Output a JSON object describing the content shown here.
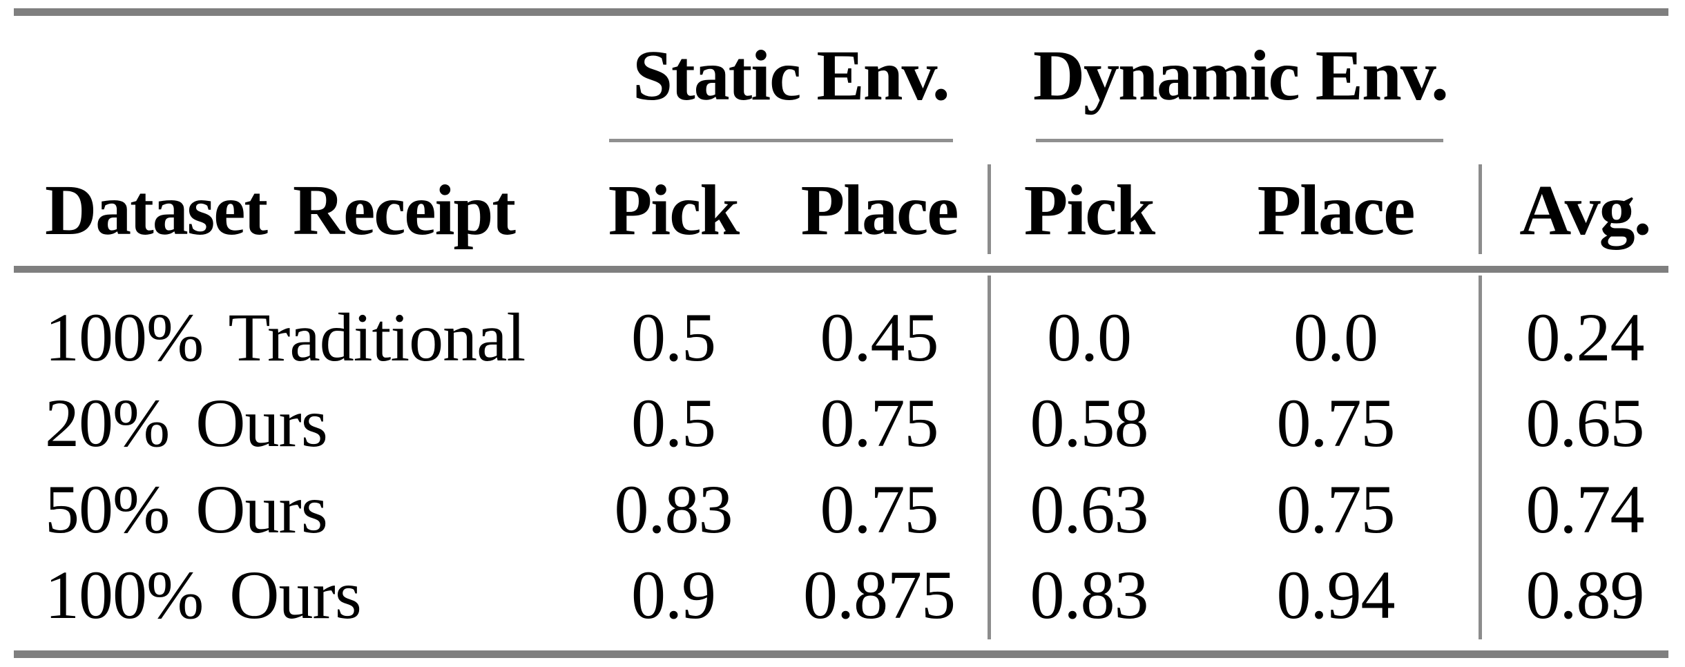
{
  "table": {
    "group_headers": [
      {
        "label": "Static Env."
      },
      {
        "label": "Dynamic Env."
      }
    ],
    "columns": [
      {
        "label": "Dataset Receipt"
      },
      {
        "label": "Pick"
      },
      {
        "label": "Place"
      },
      {
        "label": "Pick"
      },
      {
        "label": "Place"
      },
      {
        "label": "Avg."
      }
    ],
    "rows": [
      {
        "cells": [
          "100% Traditional",
          "0.5",
          "0.45",
          "0.0",
          "0.0",
          "0.24"
        ]
      },
      {
        "cells": [
          "20% Ours",
          "0.5",
          "0.75",
          "0.58",
          "0.75",
          "0.65"
        ]
      },
      {
        "cells": [
          "50% Ours",
          "0.83",
          "0.75",
          "0.63",
          "0.75",
          "0.74"
        ]
      },
      {
        "cells": [
          "100% Ours",
          "0.9",
          "0.875",
          "0.83",
          "0.94",
          "0.89"
        ]
      }
    ],
    "colors": {
      "rule": "#7f7f7f",
      "cmidrule": "#909090",
      "vline": "#8c8c8c",
      "text": "#000000",
      "background": "#ffffff"
    }
  },
  "chart_data": {
    "type": "table",
    "title": "",
    "column_groups": [
      {
        "label": "Static Env.",
        "columns": [
          "Pick",
          "Place"
        ]
      },
      {
        "label": "Dynamic Env.",
        "columns": [
          "Pick",
          "Place"
        ]
      }
    ],
    "columns": [
      "Dataset Receipt",
      "Static Env. Pick",
      "Static Env. Place",
      "Dynamic Env. Pick",
      "Dynamic Env. Place",
      "Avg."
    ],
    "rows": [
      {
        "dataset_receipt": "100% Traditional",
        "static_pick": 0.5,
        "static_place": 0.45,
        "dynamic_pick": 0.0,
        "dynamic_place": 0.0,
        "avg": 0.24
      },
      {
        "dataset_receipt": "20% Ours",
        "static_pick": 0.5,
        "static_place": 0.75,
        "dynamic_pick": 0.58,
        "dynamic_place": 0.75,
        "avg": 0.65
      },
      {
        "dataset_receipt": "50% Ours",
        "static_pick": 0.83,
        "static_place": 0.75,
        "dynamic_pick": 0.63,
        "dynamic_place": 0.75,
        "avg": 0.74
      },
      {
        "dataset_receipt": "100% Ours",
        "static_pick": 0.9,
        "static_place": 0.875,
        "dynamic_pick": 0.83,
        "dynamic_place": 0.94,
        "avg": 0.89
      }
    ]
  }
}
